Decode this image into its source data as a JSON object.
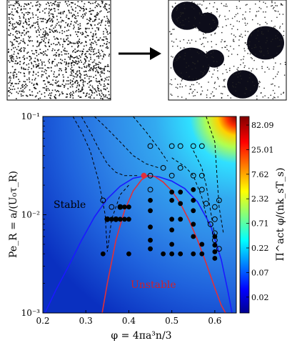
{
  "chart_data": [
    {
      "type": "scatter",
      "panel": "snapshot-homogeneous",
      "description_visible": "disordered particle configuration"
    },
    {
      "type": "scatter",
      "panel": "snapshot-clustered",
      "description_visible": "dense clusters in dilute background"
    },
    {
      "type": "heatmap",
      "xlabel": "φ = 4πa³n/3",
      "ylabel": "Pe_R = a/(U₀τ_R)",
      "colorbar_label": "Π^act φ/(nk_sT_s)",
      "xlim": [
        0.2,
        0.65
      ],
      "ylim": [
        0.001,
        0.1
      ],
      "y_scale": "log",
      "x_ticks": [
        "0.2",
        "0.3",
        "0.4",
        "0.5",
        "0.6"
      ],
      "y_ticks": [
        "10⁻³",
        "10⁻²",
        "10⁻¹"
      ],
      "colorbar_ticks": [
        "82.09",
        "25.01",
        "7.62",
        "2.32",
        "0.71",
        "0.22",
        "0.07",
        "0.02"
      ],
      "colormap": "jet",
      "annotations": {
        "stable": "Stable",
        "unstable": "Unstable"
      },
      "colors": {
        "binodal": "#1a1aff",
        "spinodal": "#e0303a",
        "critical_point": "#e0303a",
        "contour": "#000000"
      },
      "binodal": {
        "x": [
          0.205,
          0.23,
          0.26,
          0.29,
          0.32,
          0.35,
          0.38,
          0.41,
          0.44,
          0.47,
          0.5,
          0.53,
          0.56,
          0.59,
          0.615,
          0.63,
          0.64
        ],
        "y": [
          0.001,
          0.0017,
          0.003,
          0.0055,
          0.0095,
          0.0145,
          0.0195,
          0.0235,
          0.025,
          0.0243,
          0.022,
          0.0185,
          0.0135,
          0.0078,
          0.0035,
          0.0017,
          0.001
        ]
      },
      "spinodal": {
        "x": [
          0.338,
          0.35,
          0.37,
          0.39,
          0.41,
          0.43,
          0.445,
          0.46,
          0.48,
          0.5,
          0.52,
          0.54,
          0.56,
          0.58,
          0.6,
          0.615,
          0.625
        ],
        "y": [
          0.001,
          0.002,
          0.0055,
          0.011,
          0.0175,
          0.0228,
          0.025,
          0.0245,
          0.0215,
          0.0175,
          0.013,
          0.0088,
          0.0055,
          0.0032,
          0.0018,
          0.0012,
          0.001
        ]
      },
      "critical_point": {
        "x": 0.435,
        "y": 0.025
      },
      "contours": [
        {
          "x": [
            0.27,
            0.29,
            0.31,
            0.33,
            0.345,
            0.35,
            0.36,
            0.38,
            0.4
          ],
          "y": [
            0.1,
            0.07,
            0.045,
            0.022,
            0.01,
            0.0042,
            0.009,
            0.016,
            0.02
          ]
        },
        {
          "x": [
            0.29,
            0.31,
            0.33,
            0.35,
            0.37,
            0.39,
            0.42
          ],
          "y": [
            0.1,
            0.07,
            0.047,
            0.033,
            0.027,
            0.025,
            0.025
          ]
        },
        {
          "x": [
            0.32,
            0.35,
            0.38,
            0.41,
            0.44,
            0.47
          ],
          "y": [
            0.1,
            0.075,
            0.055,
            0.04,
            0.033,
            0.03
          ]
        },
        {
          "x": [
            0.41,
            0.44,
            0.47,
            0.49
          ],
          "y": [
            0.1,
            0.07,
            0.047,
            0.035
          ]
        },
        {
          "x": [
            0.58,
            0.6,
            0.605,
            0.61,
            0.62
          ],
          "y": [
            0.1,
            0.055,
            0.025,
            0.012,
            0.0065
          ]
        },
        {
          "x": [
            0.55,
            0.57,
            0.58,
            0.59,
            0.6
          ],
          "y": [
            0.045,
            0.03,
            0.02,
            0.011,
            0.006
          ]
        },
        {
          "x": [
            0.5,
            0.53,
            0.55,
            0.57,
            0.585
          ],
          "y": [
            0.038,
            0.031,
            0.025,
            0.015,
            0.008
          ]
        }
      ],
      "filled_points": [
        [
          0.34,
          0.004
        ],
        [
          0.35,
          0.009
        ],
        [
          0.36,
          0.009
        ],
        [
          0.37,
          0.009
        ],
        [
          0.38,
          0.009
        ],
        [
          0.39,
          0.009
        ],
        [
          0.4,
          0.009
        ],
        [
          0.38,
          0.012
        ],
        [
          0.39,
          0.012
        ],
        [
          0.4,
          0.012
        ],
        [
          0.4,
          0.004
        ],
        [
          0.45,
          0.0045
        ],
        [
          0.45,
          0.0055
        ],
        [
          0.45,
          0.0075
        ],
        [
          0.45,
          0.011
        ],
        [
          0.45,
          0.014
        ],
        [
          0.48,
          0.004
        ],
        [
          0.5,
          0.004
        ],
        [
          0.5,
          0.005
        ],
        [
          0.5,
          0.007
        ],
        [
          0.5,
          0.009
        ],
        [
          0.5,
          0.014
        ],
        [
          0.5,
          0.017
        ],
        [
          0.52,
          0.004
        ],
        [
          0.52,
          0.009
        ],
        [
          0.52,
          0.013
        ],
        [
          0.52,
          0.017
        ],
        [
          0.55,
          0.004
        ],
        [
          0.55,
          0.006
        ],
        [
          0.55,
          0.008
        ],
        [
          0.55,
          0.011
        ],
        [
          0.55,
          0.014
        ],
        [
          0.55,
          0.018
        ],
        [
          0.57,
          0.004
        ],
        [
          0.57,
          0.005
        ],
        [
          0.6,
          0.0036
        ],
        [
          0.6,
          0.0042
        ],
        [
          0.6,
          0.0049
        ],
        [
          0.6,
          0.006
        ]
      ],
      "open_points": [
        [
          0.34,
          0.014
        ],
        [
          0.35,
          0.009
        ],
        [
          0.36,
          0.012
        ],
        [
          0.37,
          0.009
        ],
        [
          0.38,
          0.012
        ],
        [
          0.45,
          0.05
        ],
        [
          0.45,
          0.025
        ],
        [
          0.45,
          0.018
        ],
        [
          0.48,
          0.03
        ],
        [
          0.5,
          0.05
        ],
        [
          0.5,
          0.025
        ],
        [
          0.52,
          0.05
        ],
        [
          0.52,
          0.03
        ],
        [
          0.55,
          0.05
        ],
        [
          0.55,
          0.025
        ],
        [
          0.57,
          0.05
        ],
        [
          0.57,
          0.025
        ],
        [
          0.57,
          0.018
        ],
        [
          0.58,
          0.013
        ],
        [
          0.59,
          0.008
        ],
        [
          0.6,
          0.0065
        ],
        [
          0.6,
          0.0055
        ],
        [
          0.61,
          0.0045
        ],
        [
          0.6,
          0.009
        ],
        [
          0.6,
          0.012
        ],
        [
          0.61,
          0.014
        ]
      ]
    }
  ]
}
